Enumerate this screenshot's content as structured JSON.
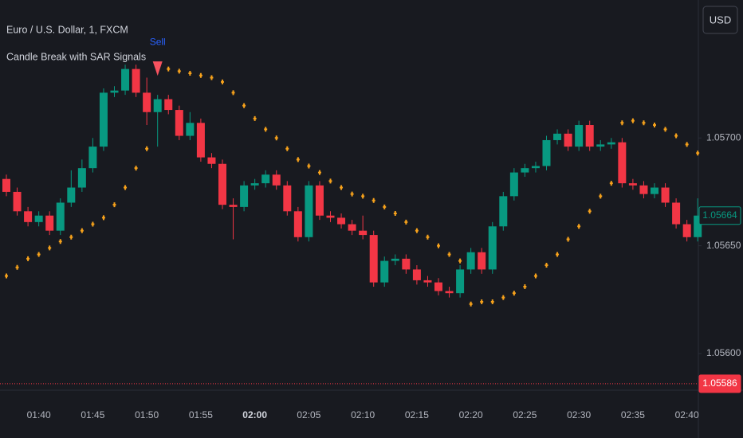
{
  "chart_data": {
    "type": "candlestick",
    "title": "Euro / U.S. Dollar, 1, FXCM",
    "indicator": "Candle Break with SAR Signals",
    "currency_button": "USD",
    "categories": [
      null,
      null,
      null,
      "01:40",
      null,
      null,
      null,
      null,
      "01:45",
      null,
      null,
      null,
      null,
      "01:50",
      null,
      null,
      null,
      null,
      "01:55",
      null,
      null,
      null,
      null,
      "02:00",
      null,
      null,
      null,
      null,
      "02:05",
      null,
      null,
      null,
      null,
      "02:10",
      null,
      null,
      null,
      null,
      "02:15",
      null,
      null,
      null,
      null,
      "02:20",
      null,
      null,
      null,
      null,
      "02:25",
      null,
      null,
      null,
      null,
      "02:30",
      null,
      null,
      null,
      null,
      "02:35",
      null,
      null,
      null,
      null,
      "02:40",
      null
    ],
    "bold_category_index": 23,
    "open": [
      1.05681,
      1.05675,
      1.05666,
      1.05661,
      1.05664,
      1.05657,
      1.0567,
      1.05677,
      1.05686,
      1.05696,
      1.05721,
      1.05722,
      1.05732,
      1.05721,
      1.05712,
      1.05718,
      1.05713,
      1.05701,
      1.05707,
      1.05691,
      1.05688,
      1.05669,
      1.05668,
      1.05678,
      1.05679,
      1.05683,
      1.05678,
      1.05666,
      1.05654,
      1.05678,
      1.05664,
      1.05663,
      1.0566,
      1.05657,
      1.05655,
      1.05633,
      1.05643,
      1.05644,
      1.05639,
      1.05634,
      1.05633,
      1.05629,
      1.05628,
      1.05639,
      1.05647,
      1.05639,
      1.05659,
      1.05673,
      1.05684,
      1.05686,
      1.05687,
      1.05699,
      1.05702,
      1.05696,
      1.05706,
      1.05696,
      1.05697,
      1.05698,
      1.05679,
      1.05678,
      1.05674,
      1.05677,
      1.0567,
      1.0566,
      1.05654
    ],
    "high": [
      1.05683,
      1.05677,
      1.05668,
      1.05666,
      1.05666,
      1.05672,
      1.05685,
      1.0569,
      1.057,
      1.05723,
      1.05724,
      1.05734,
      1.05734,
      1.05728,
      1.0572,
      1.0572,
      1.05715,
      1.05712,
      1.05709,
      1.05693,
      1.0569,
      1.05672,
      1.0568,
      1.05681,
      1.05685,
      1.05685,
      1.0568,
      1.05668,
      1.0568,
      1.0568,
      1.05666,
      1.05665,
      1.05662,
      1.05664,
      1.05657,
      1.05645,
      1.05646,
      1.05646,
      1.05641,
      1.05636,
      1.05635,
      1.05631,
      1.05641,
      1.05649,
      1.05649,
      1.05661,
      1.05675,
      1.05686,
      1.05688,
      1.05689,
      1.05701,
      1.05704,
      1.05704,
      1.05708,
      1.05708,
      1.05699,
      1.057,
      1.057,
      1.05681,
      1.0568,
      1.05679,
      1.05679,
      1.05672,
      1.05662,
      1.05672
    ],
    "low": [
      1.05673,
      1.05664,
      1.05659,
      1.05659,
      1.05655,
      1.05655,
      1.05668,
      1.05675,
      1.05684,
      1.05694,
      1.05719,
      1.0572,
      1.05719,
      1.05706,
      1.05696,
      1.05711,
      1.05699,
      1.05699,
      1.05689,
      1.05686,
      1.05667,
      1.05653,
      1.05666,
      1.05676,
      1.05677,
      1.05676,
      1.05664,
      1.05652,
      1.05652,
      1.05662,
      1.05661,
      1.05658,
      1.05655,
      1.05653,
      1.05631,
      1.05631,
      1.05641,
      1.05637,
      1.05632,
      1.05631,
      1.05627,
      1.05626,
      1.05626,
      1.05637,
      1.05637,
      1.05637,
      1.05657,
      1.05671,
      1.05682,
      1.05684,
      1.05685,
      1.05697,
      1.05694,
      1.05694,
      1.05694,
      1.05694,
      1.05695,
      1.05677,
      1.05676,
      1.05672,
      1.05672,
      1.05668,
      1.05658,
      1.05652,
      1.05652
    ],
    "close": [
      1.05675,
      1.05666,
      1.05661,
      1.05664,
      1.05657,
      1.0567,
      1.05677,
      1.05686,
      1.05696,
      1.05721,
      1.05722,
      1.05732,
      1.05721,
      1.05712,
      1.05718,
      1.05713,
      1.05701,
      1.05707,
      1.05691,
      1.05688,
      1.05669,
      1.05668,
      1.05678,
      1.05679,
      1.05683,
      1.05678,
      1.05666,
      1.05654,
      1.05678,
      1.05664,
      1.05663,
      1.0566,
      1.05657,
      1.05655,
      1.05633,
      1.05643,
      1.05644,
      1.05639,
      1.05634,
      1.05633,
      1.05629,
      1.05628,
      1.05639,
      1.05647,
      1.05639,
      1.05659,
      1.05673,
      1.05684,
      1.05686,
      1.05687,
      1.05699,
      1.05702,
      1.05696,
      1.05706,
      1.05696,
      1.05697,
      1.05698,
      1.05679,
      1.05678,
      1.05674,
      1.05677,
      1.0567,
      1.0566,
      1.05654,
      1.05664
    ],
    "up_color": "#089981",
    "down_color": "#f23645",
    "sar": [
      1.05636,
      1.0564,
      1.05644,
      1.05646,
      1.05649,
      1.05652,
      1.05654,
      1.05657,
      1.0566,
      1.05663,
      1.05669,
      1.05677,
      1.05686,
      1.05695,
      1.05733,
      1.05732,
      1.05731,
      1.0573,
      1.05729,
      1.05728,
      1.05726,
      1.05721,
      1.05715,
      1.05709,
      1.05704,
      1.057,
      1.05695,
      1.0569,
      1.05687,
      1.05684,
      1.0568,
      1.05677,
      1.05674,
      1.05673,
      1.05671,
      1.05668,
      1.05665,
      1.05661,
      1.05657,
      1.05654,
      1.0565,
      1.05646,
      1.05643,
      1.05623,
      1.05624,
      1.05624,
      1.05626,
      1.05628,
      1.05631,
      1.05636,
      1.05641,
      1.05646,
      1.05653,
      1.05659,
      1.05666,
      1.05673,
      1.05679,
      1.05707,
      1.05708,
      1.05707,
      1.05706,
      1.05704,
      1.05701,
      1.05697,
      1.05693
    ],
    "sar_color": "#f7a21b",
    "signals": [
      {
        "index": 14,
        "label": "Sell",
        "color": "#f7525f",
        "label_color": "#2962ff"
      }
    ],
    "ylim": [
      1.05583,
      1.05764
    ],
    "yticks": [
      {
        "value": 1.057,
        "label": "1.05700"
      },
      {
        "value": 1.0565,
        "label": "1.05650"
      },
      {
        "value": 1.056,
        "label": "1.05600"
      }
    ],
    "price_tags": [
      {
        "value": 1.05664,
        "label": "1.05664",
        "color": "#089981",
        "filled": false,
        "line": false
      },
      {
        "value": 1.05586,
        "label": "1.05586",
        "color": "#f23645",
        "filled": true,
        "line": true
      }
    ]
  }
}
